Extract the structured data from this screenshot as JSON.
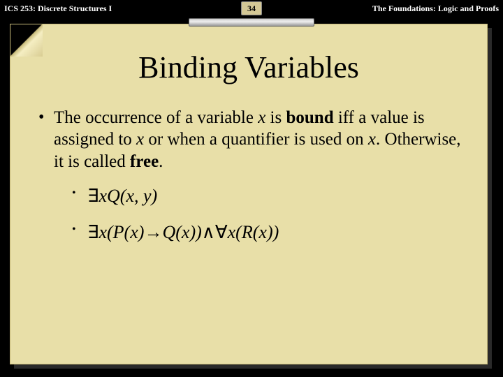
{
  "header": {
    "course": "ICS 253: Discrete Structures I",
    "page_number": "34",
    "chapter": "The Foundations: Logic and Proofs"
  },
  "slide": {
    "title": "Binding Variables",
    "bullet_text_1": "The occurrence of a variable ",
    "bullet_var_x1": "x",
    "bullet_text_2": " is ",
    "bullet_bold_bound": "bound",
    "bullet_text_3": "  iff a value is assigned to ",
    "bullet_var_x2": "x",
    "bullet_text_4": " or when a quantifier is used on ",
    "bullet_var_x3": "x",
    "bullet_text_5": ". Otherwise, it is called ",
    "bullet_bold_free": "free",
    "bullet_text_6": ".",
    "formula1": {
      "exists": "∃",
      "x": "x",
      "Q": "Q",
      "open": "(",
      "arg1": "x",
      "comma": ", ",
      "arg2": "y",
      "close": ")"
    },
    "formula2": {
      "exists": "∃",
      "x1": "x",
      "open1": "(",
      "P": "P",
      "open2": "(",
      "px": "x",
      "close2": ")",
      "arrow": "→",
      "Q": "Q",
      "open3": "(",
      "qx": "x",
      "close3": ")",
      "close1": ")",
      "and": "∧",
      "forall": "∀",
      "x2": "x",
      "open4": "(",
      "R": "R",
      "open5": "(",
      "rx": "x",
      "close5": ")",
      "close4": ")"
    }
  },
  "colors": {
    "paper_bg": "#e8dfa8",
    "paper_border": "#c8bb7a",
    "text": "#000000",
    "header_bg": "#000000",
    "header_text": "#ffffff"
  }
}
